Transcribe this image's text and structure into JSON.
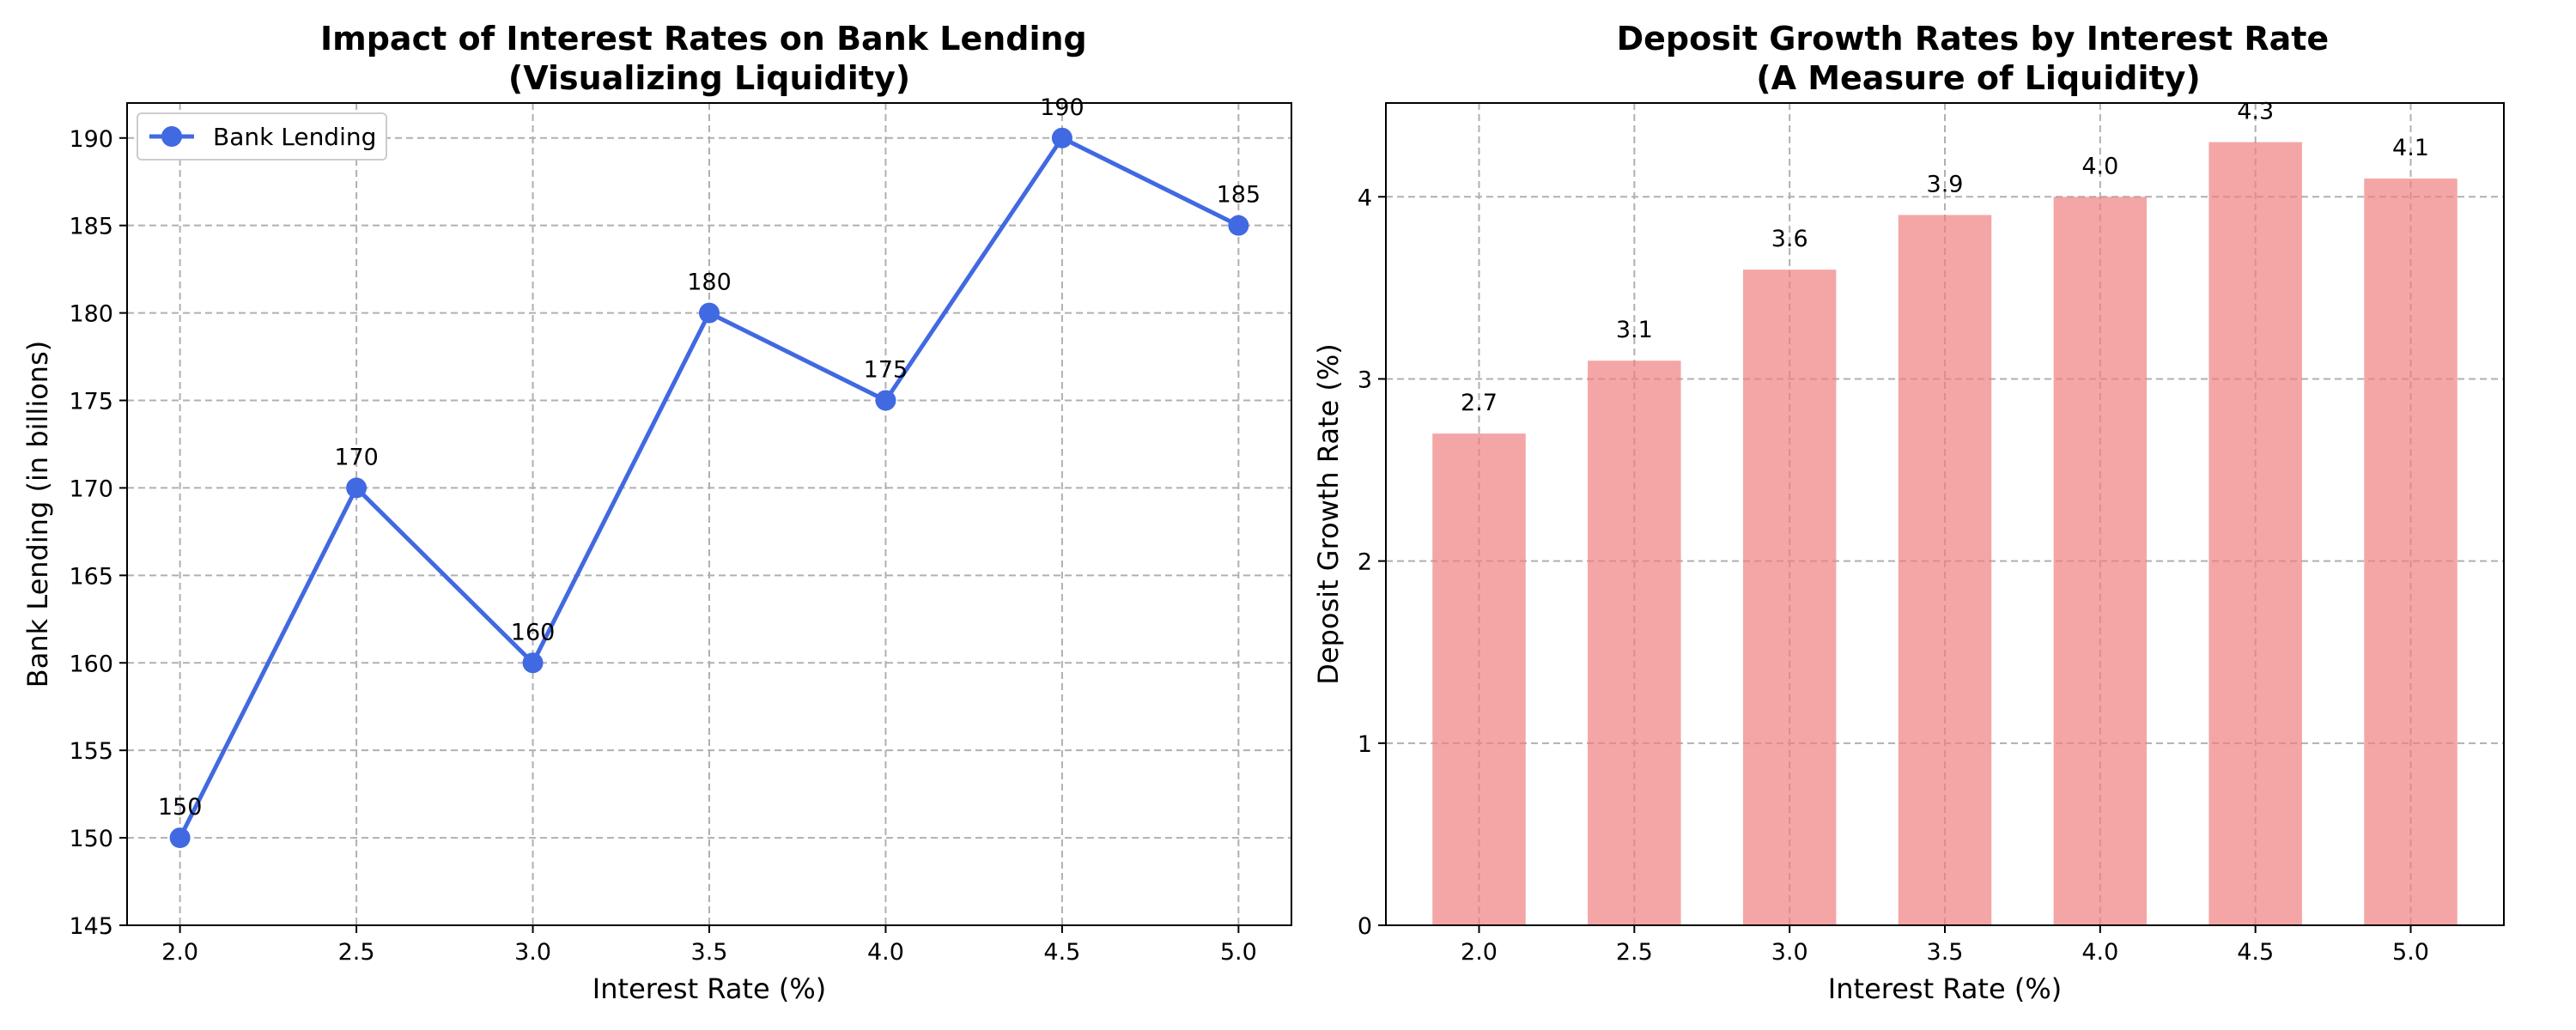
{
  "chart_data": [
    {
      "type": "line",
      "title": "Impact of Interest Rates on Bank Lending\n(Visualizing Liquidity)",
      "xlabel": "Interest Rate (%)",
      "ylabel": "Bank Lending (in billions)",
      "x": [
        2.0,
        2.5,
        3.0,
        3.5,
        4.0,
        4.5,
        5.0
      ],
      "xticks": [
        "2.0",
        "2.5",
        "3.0",
        "3.5",
        "4.0",
        "4.5",
        "5.0"
      ],
      "xlim": [
        1.85,
        5.15
      ],
      "ylim": [
        145,
        192
      ],
      "yticks": [
        145,
        150,
        155,
        160,
        165,
        170,
        175,
        180,
        185,
        190
      ],
      "grid": true,
      "legend": "upper-left",
      "series": [
        {
          "name": "Bank Lending",
          "values": [
            150,
            170,
            160,
            180,
            175,
            190,
            185
          ],
          "data_labels": [
            "150",
            "170",
            "160",
            "180",
            "175",
            "190",
            "185"
          ],
          "color": "#4169e1"
        }
      ]
    },
    {
      "type": "bar",
      "title": "Deposit Growth Rates by Interest Rate\n(A Measure of Liquidity)",
      "xlabel": "Interest Rate (%)",
      "ylabel": "Deposit Growth Rate (%)",
      "categories": [
        "2.0",
        "2.5",
        "3.0",
        "3.5",
        "4.0",
        "4.5",
        "5.0"
      ],
      "values": [
        2.7,
        3.1,
        3.6,
        3.9,
        4.0,
        4.3,
        4.1
      ],
      "data_labels": [
        "2.7",
        "3.1",
        "3.6",
        "3.9",
        "4.0",
        "4.3",
        "4.1"
      ],
      "ylim": [
        0,
        4.515
      ],
      "yticks": [
        0,
        1,
        2,
        3,
        4
      ],
      "grid": true,
      "color": "#f08080"
    }
  ]
}
